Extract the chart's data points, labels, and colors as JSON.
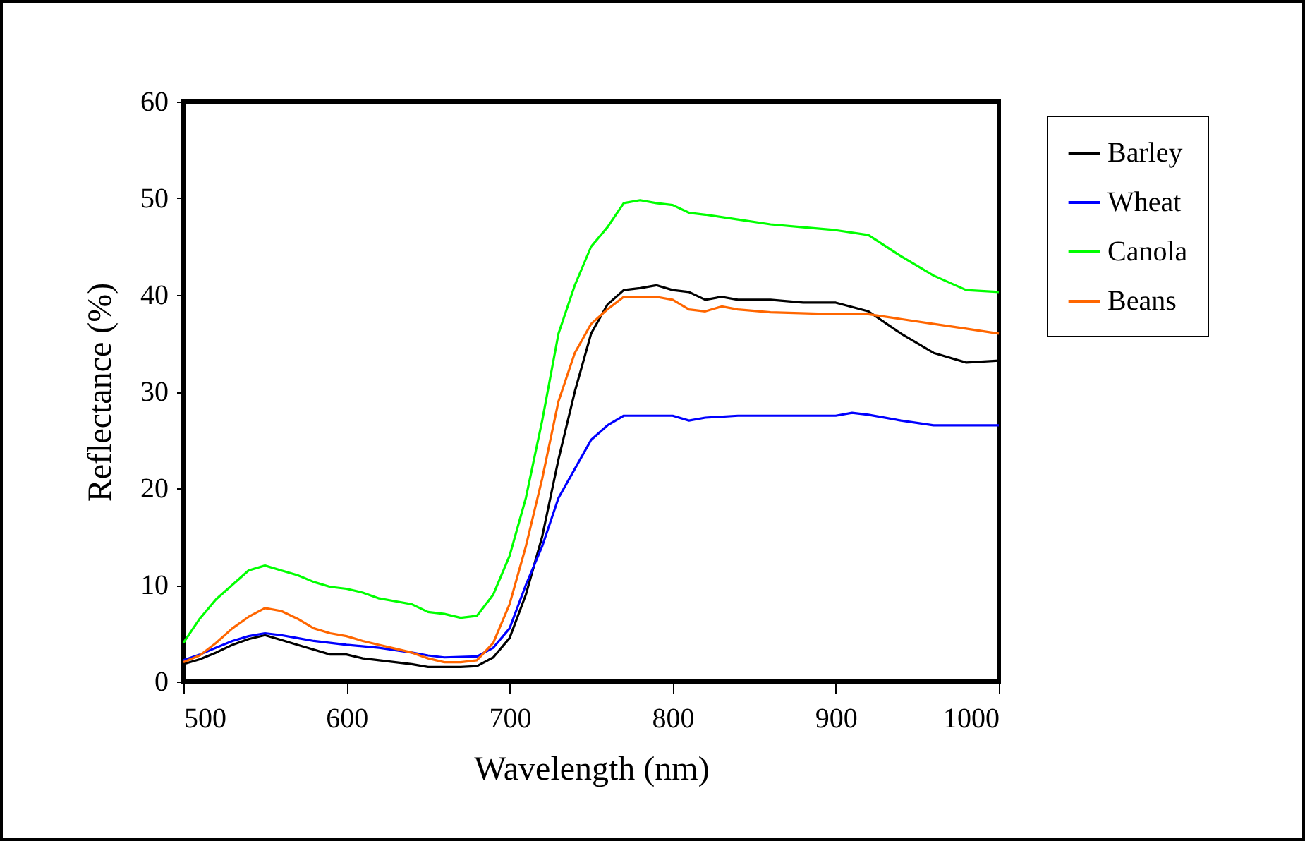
{
  "chart_data": {
    "type": "line",
    "xlabel": "Wavelength (nm)",
    "ylabel": "Reflectance (%)",
    "xlim": [
      500,
      1000
    ],
    "ylim": [
      0,
      60
    ],
    "xticks": [
      500,
      600,
      700,
      800,
      900,
      1000
    ],
    "yticks": [
      0,
      10,
      20,
      30,
      40,
      50,
      60
    ],
    "grid": false,
    "legend": "right",
    "marker": "none",
    "line_style": "solid",
    "series": [
      {
        "name": "Barley",
        "color": "#000000",
        "x": [
          500,
          510,
          520,
          530,
          540,
          550,
          560,
          570,
          580,
          590,
          600,
          610,
          620,
          630,
          640,
          650,
          660,
          670,
          680,
          690,
          700,
          710,
          720,
          730,
          740,
          750,
          760,
          770,
          780,
          790,
          800,
          810,
          820,
          830,
          840,
          860,
          880,
          900,
          920,
          940,
          960,
          980,
          1000
        ],
        "values": [
          1.8,
          2.3,
          3,
          3.8,
          4.4,
          4.8,
          4.3,
          3.8,
          3.3,
          2.8,
          2.8,
          2.4,
          2.2,
          2,
          1.8,
          1.5,
          1.5,
          1.5,
          1.6,
          2.5,
          4.5,
          9,
          15,
          23,
          30,
          36,
          39,
          40.5,
          40.7,
          41,
          40.5,
          40.3,
          39.5,
          39.8,
          39.5,
          39.5,
          39.2,
          39.2,
          38.3,
          36,
          34,
          33,
          33.2
        ]
      },
      {
        "name": "Wheat",
        "color": "#0000ff",
        "x": [
          500,
          510,
          520,
          530,
          540,
          550,
          560,
          570,
          580,
          590,
          600,
          620,
          640,
          650,
          660,
          680,
          690,
          700,
          710,
          720,
          730,
          740,
          750,
          760,
          770,
          800,
          810,
          820,
          840,
          900,
          910,
          920,
          940,
          960,
          1000
        ],
        "values": [
          2.2,
          2.8,
          3.5,
          4.2,
          4.7,
          5,
          4.8,
          4.5,
          4.2,
          4,
          3.8,
          3.5,
          3,
          2.7,
          2.5,
          2.6,
          3.5,
          5.5,
          10,
          14,
          19,
          22,
          25,
          26.5,
          27.5,
          27.5,
          27,
          27.3,
          27.5,
          27.5,
          27.8,
          27.6,
          27,
          26.5,
          26.5
        ]
      },
      {
        "name": "Canola",
        "color": "#00ff00",
        "x": [
          500,
          510,
          520,
          530,
          540,
          550,
          560,
          570,
          580,
          590,
          600,
          610,
          620,
          630,
          640,
          650,
          660,
          670,
          680,
          690,
          700,
          710,
          720,
          730,
          740,
          750,
          760,
          770,
          780,
          790,
          800,
          810,
          820,
          840,
          860,
          880,
          900,
          920,
          940,
          960,
          980,
          1000
        ],
        "values": [
          4,
          6.5,
          8.5,
          10,
          11.5,
          12,
          11.5,
          11,
          10.3,
          9.8,
          9.6,
          9.2,
          8.6,
          8.3,
          8,
          7.2,
          7,
          6.6,
          6.8,
          9,
          13,
          19,
          27,
          36,
          41,
          45,
          47,
          49.5,
          49.8,
          49.5,
          49.3,
          48.5,
          48.3,
          47.8,
          47.3,
          47,
          46.7,
          46.2,
          44,
          42,
          40.5,
          40.3
        ]
      },
      {
        "name": "Beans",
        "color": "#ff6600",
        "x": [
          500,
          510,
          520,
          530,
          540,
          550,
          560,
          570,
          580,
          590,
          600,
          610,
          620,
          630,
          640,
          650,
          660,
          670,
          680,
          690,
          700,
          710,
          720,
          730,
          740,
          750,
          760,
          770,
          790,
          800,
          810,
          820,
          830,
          840,
          860,
          900,
          920,
          940,
          960,
          980,
          1000
        ],
        "values": [
          2,
          2.7,
          4,
          5.5,
          6.7,
          7.6,
          7.3,
          6.5,
          5.5,
          5,
          4.7,
          4.2,
          3.8,
          3.4,
          3,
          2.4,
          2,
          2,
          2.2,
          4,
          8,
          14,
          21,
          29,
          34,
          37,
          38.5,
          39.8,
          39.8,
          39.5,
          38.5,
          38.3,
          38.8,
          38.5,
          38.2,
          38,
          38,
          37.5,
          37,
          36.5,
          36
        ]
      }
    ]
  }
}
